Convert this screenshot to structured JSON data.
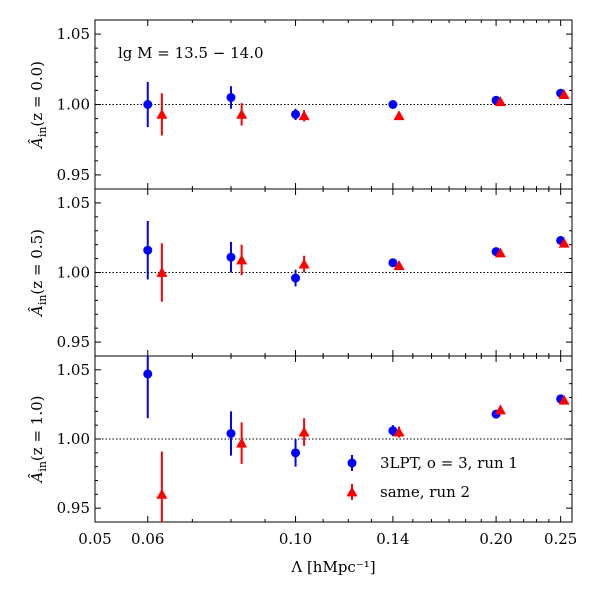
{
  "chart_data": {
    "type": "scatter",
    "x_scale": "log",
    "xlim": [
      0.05,
      0.26
    ],
    "xticks": [
      0.05,
      0.06,
      0.1,
      0.14,
      0.2,
      0.25
    ],
    "xtick_labels": [
      "0.05",
      "0.06",
      "0.10",
      "0.14",
      "0.20",
      "0.25"
    ],
    "xlabel": "Λ [hMpc⁻¹]",
    "shared_ylim": [
      0.94,
      1.06
    ],
    "yticks": [
      0.95,
      1.0,
      1.05
    ],
    "ytick_labels": [
      "0.95",
      "1.00",
      "1.05"
    ],
    "reference_line": 1.0,
    "annotation": "lg M = 13.5 − 14.0",
    "x_offset_run2": 0.003,
    "series_meta": [
      {
        "name": "3LPT, o = 3, run 1",
        "marker": "circle",
        "color": "#0000ff"
      },
      {
        "name": "same, run 2",
        "marker": "triangle",
        "color": "#ff0000"
      }
    ],
    "panels": [
      {
        "ylabel_main": "Â",
        "ylabel_sub": "in",
        "ylabel_rest": "(z = 0.0)",
        "series": [
          {
            "x": [
              0.06,
              0.08,
              0.1,
              0.14,
              0.2,
              0.25
            ],
            "y": [
              1.0,
              1.005,
              0.993,
              1.0,
              1.003,
              1.008
            ],
            "err": [
              0.016,
              0.008,
              0.004,
              0.002,
              0.002,
              0.002
            ]
          },
          {
            "x": [
              0.06,
              0.08,
              0.1,
              0.14,
              0.2,
              0.25
            ],
            "y": [
              0.993,
              0.993,
              0.992,
              0.992,
              1.002,
              1.007
            ],
            "err": [
              0.015,
              0.008,
              0.004,
              0.002,
              0.002,
              0.002
            ]
          }
        ]
      },
      {
        "ylabel_main": "Â",
        "ylabel_sub": "in",
        "ylabel_rest": "(z = 0.5)",
        "series": [
          {
            "x": [
              0.06,
              0.08,
              0.1,
              0.14,
              0.2,
              0.25
            ],
            "y": [
              1.016,
              1.011,
              0.996,
              1.007,
              1.015,
              1.023
            ],
            "err": [
              0.021,
              0.011,
              0.006,
              0.003,
              0.002,
              0.002
            ]
          },
          {
            "x": [
              0.06,
              0.08,
              0.1,
              0.14,
              0.2,
              0.25
            ],
            "y": [
              1.0,
              1.009,
              1.006,
              1.005,
              1.014,
              1.021
            ],
            "err": [
              0.021,
              0.011,
              0.006,
              0.003,
              0.002,
              0.002
            ]
          }
        ]
      },
      {
        "ylabel_main": "Â",
        "ylabel_sub": "in",
        "ylabel_rest": "(z = 1.0)",
        "series": [
          {
            "x": [
              0.06,
              0.08,
              0.1,
              0.14,
              0.2,
              0.25
            ],
            "y": [
              1.047,
              1.004,
              0.99,
              1.006,
              1.018,
              1.029
            ],
            "err": [
              0.032,
              0.016,
              0.01,
              0.004,
              0.002,
              0.002
            ]
          },
          {
            "x": [
              0.06,
              0.08,
              0.1,
              0.14,
              0.2,
              0.25
            ],
            "y": [
              0.96,
              0.997,
              1.005,
              1.005,
              1.021,
              1.028
            ],
            "err": [
              0.031,
              0.015,
              0.01,
              0.004,
              0.003,
              0.002
            ]
          }
        ]
      }
    ],
    "legend": {
      "position": "lower-right",
      "entries": [
        "3LPT, o = 3, run 1",
        "same, run 2"
      ]
    }
  }
}
